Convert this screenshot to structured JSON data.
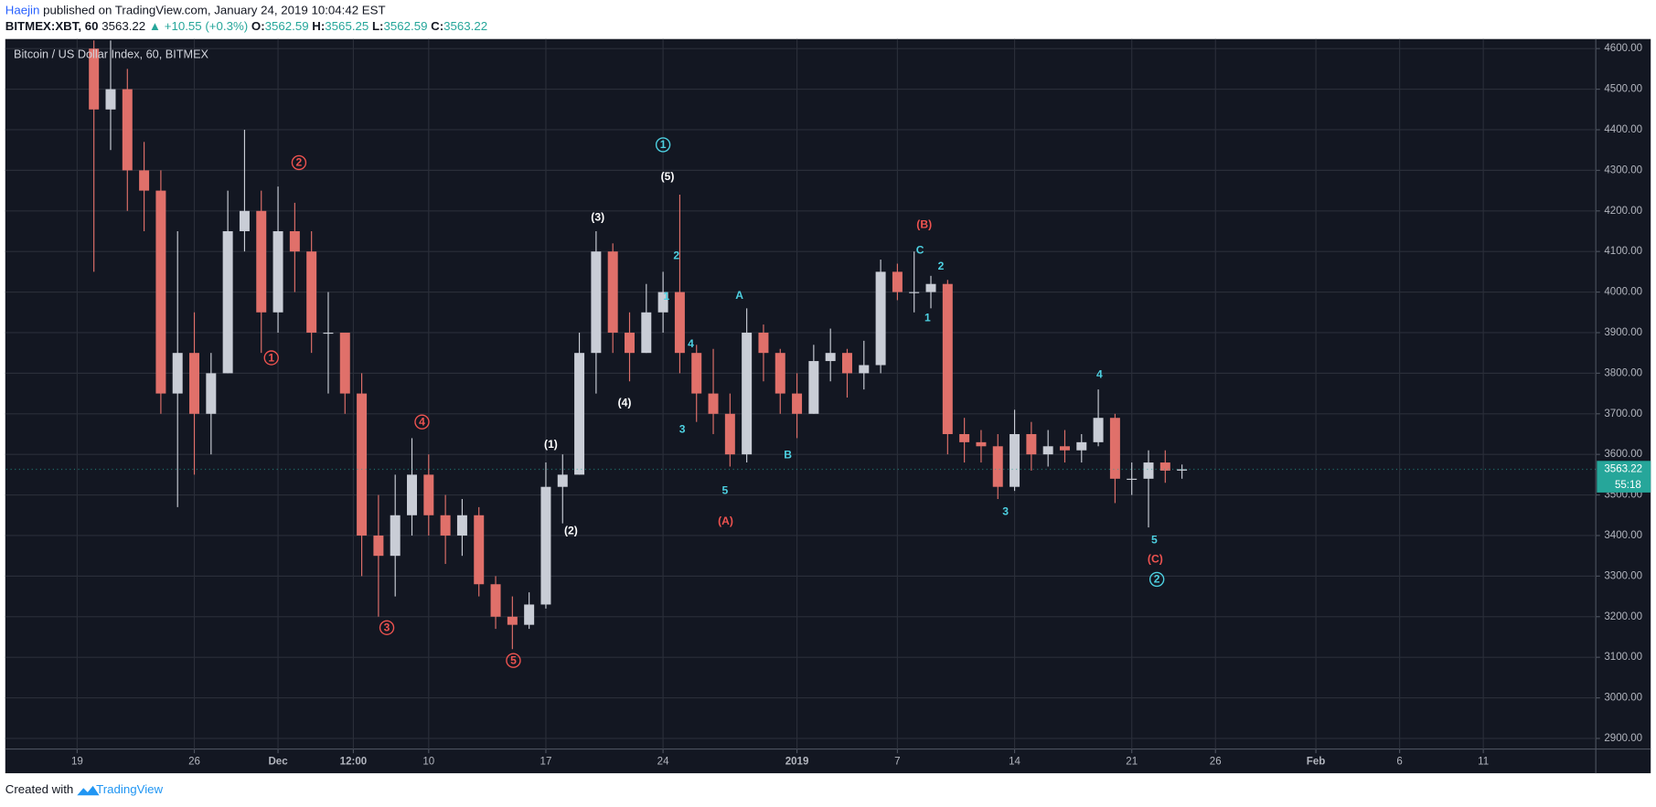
{
  "header": {
    "author": "Haejin",
    "published": "published on TradingView.com, January 24, 2019 10:04:42 EST",
    "symbol": "BITMEX:XBT, 60",
    "last": 3563.22,
    "arrow": "▲",
    "change": "+10.55 (+0.3%)",
    "o_label": "O:",
    "open": 3562.59,
    "h_label": "H:",
    "high": 3565.25,
    "l_label": "L:",
    "low": 3562.59,
    "c_label": "C:",
    "close": 3563.22
  },
  "footer": {
    "created": "Created with",
    "brand": "TradingView"
  },
  "chart_data": {
    "type": "candlestick",
    "title": "Bitcoin / US Dollar Index, 60, BITMEX",
    "x": [
      1,
      2,
      3,
      4,
      5,
      6,
      7,
      8,
      9,
      10,
      11,
      12,
      13,
      14,
      15,
      16,
      17,
      18,
      19,
      20,
      21,
      22,
      23,
      24,
      25,
      26,
      27,
      28,
      29,
      30,
      31,
      32,
      33,
      34,
      35,
      36,
      37,
      38,
      39,
      40,
      41,
      42,
      43,
      44,
      45,
      46,
      47,
      48,
      49,
      50,
      51,
      52,
      53,
      54,
      55,
      56,
      57,
      58,
      59,
      60,
      61,
      62,
      63,
      64,
      65,
      66
    ],
    "open": [
      4600,
      4450,
      4500,
      4300,
      4250,
      3750,
      3850,
      3700,
      3800,
      4150,
      4200,
      3950,
      4150,
      4100,
      3900,
      3900,
      3750,
      3400,
      3350,
      3450,
      3550,
      3450,
      3400,
      3450,
      3280,
      3200,
      3180,
      3230,
      3520,
      3550,
      3850,
      4100,
      3900,
      3850,
      3950,
      4000,
      3850,
      3750,
      3700,
      3600,
      3900,
      3850,
      3750,
      3700,
      3830,
      3850,
      3800,
      3820,
      4050,
      4000,
      4000,
      4020,
      3650,
      3630,
      3620,
      3520,
      3650,
      3600,
      3620,
      3610,
      3630,
      3690,
      3540,
      3540,
      3580,
      3560
    ],
    "high": [
      4620,
      4620,
      4550,
      4370,
      4300,
      4150,
      3950,
      3850,
      4250,
      4400,
      4250,
      4260,
      4220,
      4150,
      4000,
      3900,
      3800,
      3500,
      3550,
      3640,
      3600,
      3500,
      3490,
      3470,
      3300,
      3250,
      3260,
      3580,
      3600,
      3900,
      4150,
      4120,
      3950,
      4020,
      4050,
      4240,
      3870,
      3860,
      3750,
      3960,
      3920,
      3860,
      3800,
      3870,
      3910,
      3860,
      3880,
      4080,
      4070,
      4100,
      4040,
      4030,
      3690,
      3660,
      3650,
      3710,
      3680,
      3660,
      3660,
      3650,
      3760,
      3700,
      3580,
      3610,
      3610,
      3575
    ],
    "low": [
      4050,
      4350,
      4200,
      4150,
      3700,
      3470,
      3550,
      3600,
      3800,
      4100,
      3850,
      3900,
      4000,
      3850,
      3750,
      3700,
      3300,
      3200,
      3250,
      3400,
      3400,
      3330,
      3350,
      3250,
      3170,
      3120,
      3170,
      3220,
      3430,
      3550,
      3750,
      3850,
      3780,
      3850,
      3900,
      3800,
      3680,
      3650,
      3570,
      3580,
      3780,
      3700,
      3640,
      3700,
      3780,
      3740,
      3760,
      3800,
      3980,
      3950,
      3960,
      3600,
      3580,
      3580,
      3490,
      3510,
      3560,
      3570,
      3580,
      3580,
      3620,
      3480,
      3500,
      3420,
      3530,
      3540
    ],
    "close": [
      4450,
      4500,
      4300,
      4250,
      3750,
      3850,
      3700,
      3800,
      4150,
      4200,
      3950,
      4150,
      4100,
      3900,
      3900,
      3750,
      3400,
      3350,
      3450,
      3550,
      3450,
      3400,
      3450,
      3280,
      3200,
      3180,
      3230,
      3520,
      3550,
      3850,
      4100,
      3900,
      3850,
      3950,
      4000,
      3850,
      3750,
      3700,
      3600,
      3900,
      3850,
      3750,
      3700,
      3830,
      3850,
      3800,
      3820,
      4050,
      4000,
      4000,
      4020,
      3650,
      3630,
      3620,
      3520,
      3650,
      3600,
      3620,
      3610,
      3630,
      3690,
      3540,
      3540,
      3580,
      3560,
      3563.22
    ],
    "up_color": "#c9cdd6",
    "down_color": "#e0706a",
    "xlim": [
      -4.23,
      90.72
    ],
    "xticks": [
      {
        "value": 0,
        "label": "19"
      },
      {
        "value": 7,
        "label": "26"
      },
      {
        "value": 12,
        "label": "Dec"
      },
      {
        "value": 16.5,
        "label": "12:00"
      },
      {
        "value": 21,
        "label": "10"
      },
      {
        "value": 28,
        "label": "17"
      },
      {
        "value": 35,
        "label": "24"
      },
      {
        "value": 43,
        "label": "2019"
      },
      {
        "value": 49,
        "label": "7"
      },
      {
        "value": 56,
        "label": "14"
      },
      {
        "value": 63,
        "label": "21"
      },
      {
        "value": 68,
        "label": "26"
      },
      {
        "value": 74,
        "label": "Feb"
      },
      {
        "value": 79,
        "label": "6"
      },
      {
        "value": 84,
        "label": "11"
      }
    ],
    "ylim": [
      2874,
      4621
    ],
    "yticks": [
      {
        "value": 2900,
        "label": "2900.00"
      },
      {
        "value": 3000,
        "label": "3000.00"
      },
      {
        "value": 3100,
        "label": "3100.00"
      },
      {
        "value": 3200,
        "label": "3200.00"
      },
      {
        "value": 3300,
        "label": "3300.00"
      },
      {
        "value": 3400,
        "label": "3400.00"
      },
      {
        "value": 3500,
        "label": "3500.00"
      },
      {
        "value": 3600,
        "label": "3600.00"
      },
      {
        "value": 3700,
        "label": "3700.00"
      },
      {
        "value": 3800,
        "label": "3800.00"
      },
      {
        "value": 3900,
        "label": "3900.00"
      },
      {
        "value": 4000,
        "label": "4000.00"
      },
      {
        "value": 4100,
        "label": "4100.00"
      },
      {
        "value": 4200,
        "label": "4200.00"
      },
      {
        "value": 4300,
        "label": "4300.00"
      },
      {
        "value": 4400,
        "label": "4400.00"
      },
      {
        "value": 4500,
        "label": "4500.00"
      },
      {
        "value": 4600,
        "label": "4600.00"
      }
    ],
    "grid": true,
    "last_price": 3563.22,
    "countdown": "55:18",
    "tag_color": "#26a69a",
    "annotations": [
      {
        "text": "1",
        "x": 35.0,
        "y": 4363,
        "color": "#4dd0e1",
        "shape": "circle"
      },
      {
        "text": "2",
        "x": 13.25,
        "y": 4319,
        "color": "#ef5350",
        "shape": "circle"
      },
      {
        "text": "1",
        "x": 11.6,
        "y": 3838,
        "color": "#ef5350",
        "shape": "circle"
      },
      {
        "text": "3",
        "x": 18.5,
        "y": 3173,
        "color": "#ef5350",
        "shape": "circle"
      },
      {
        "text": "4",
        "x": 20.6,
        "y": 3680,
        "color": "#ef5350",
        "shape": "circle"
      },
      {
        "text": "5",
        "x": 26.06,
        "y": 3092,
        "color": "#ef5350",
        "shape": "circle"
      },
      {
        "text": "2",
        "x": 64.5,
        "y": 3292,
        "color": "#4dd0e1",
        "shape": "circle"
      },
      {
        "text": "(5)",
        "x": 35.27,
        "y": 4285,
        "color": "#ffffff"
      },
      {
        "text": "(3)",
        "x": 31.1,
        "y": 4184,
        "color": "#ffffff"
      },
      {
        "text": "(4)",
        "x": 32.7,
        "y": 3727,
        "color": "#ffffff"
      },
      {
        "text": "(1)",
        "x": 28.3,
        "y": 3625,
        "color": "#ffffff"
      },
      {
        "text": "(2)",
        "x": 29.5,
        "y": 3412,
        "color": "#ffffff"
      },
      {
        "text": "2",
        "x": 35.8,
        "y": 4090,
        "color": "#4dd0e1"
      },
      {
        "text": "1",
        "x": 35.2,
        "y": 3989,
        "color": "#4dd0e1"
      },
      {
        "text": "4",
        "x": 36.66,
        "y": 3872,
        "color": "#4dd0e1"
      },
      {
        "text": "3",
        "x": 36.15,
        "y": 3662,
        "color": "#4dd0e1"
      },
      {
        "text": "5",
        "x": 38.7,
        "y": 3511,
        "color": "#4dd0e1"
      },
      {
        "text": "A",
        "x": 39.56,
        "y": 3992,
        "color": "#4dd0e1"
      },
      {
        "text": "B",
        "x": 42.46,
        "y": 3599,
        "color": "#4dd0e1"
      },
      {
        "text": "C",
        "x": 50.35,
        "y": 4103,
        "color": "#4dd0e1"
      },
      {
        "text": "2",
        "x": 51.6,
        "y": 4064,
        "color": "#4dd0e1"
      },
      {
        "text": "1",
        "x": 50.8,
        "y": 3937,
        "color": "#4dd0e1"
      },
      {
        "text": "3",
        "x": 55.46,
        "y": 3459,
        "color": "#4dd0e1"
      },
      {
        "text": "4",
        "x": 61.07,
        "y": 3797,
        "color": "#4dd0e1"
      },
      {
        "text": "5",
        "x": 64.35,
        "y": 3389,
        "color": "#4dd0e1"
      },
      {
        "text": "(A)",
        "x": 38.74,
        "y": 3435,
        "color": "#ef5350"
      },
      {
        "text": "(B)",
        "x": 50.6,
        "y": 4166,
        "color": "#ef5350"
      },
      {
        "text": "(C)",
        "x": 64.4,
        "y": 3342,
        "color": "#ef5350"
      }
    ]
  }
}
